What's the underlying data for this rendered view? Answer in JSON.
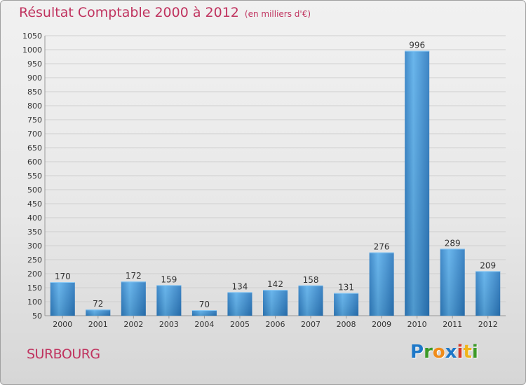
{
  "title": "Résultat Comptable 2000 à 2012",
  "unit": "(en milliers d'€)",
  "town": "SURBOURG",
  "logo": {
    "letters": [
      {
        "ch": "P",
        "color": "#1e78c8"
      },
      {
        "ch": "r",
        "color": "#3c9a28"
      },
      {
        "ch": "o",
        "color": "#f08c1a"
      },
      {
        "ch": "x",
        "color": "#1e78c8"
      },
      {
        "ch": "i",
        "color": "#d43a2a"
      },
      {
        "ch": "t",
        "color": "#f0b41a"
      },
      {
        "ch": "i",
        "color": "#3c9a28"
      }
    ]
  },
  "chart_data": {
    "type": "bar",
    "categories": [
      "2000",
      "2001",
      "2002",
      "2003",
      "2004",
      "2005",
      "2006",
      "2007",
      "2008",
      "2009",
      "2010",
      "2011",
      "2012"
    ],
    "values": [
      170,
      72,
      172,
      159,
      70,
      134,
      142,
      158,
      131,
      276,
      996,
      289,
      209
    ],
    "ylim": [
      50,
      1050
    ],
    "yticks": [
      50,
      100,
      150,
      200,
      250,
      300,
      350,
      400,
      450,
      500,
      550,
      600,
      650,
      700,
      750,
      800,
      850,
      900,
      950,
      1000,
      1050
    ],
    "grid": true,
    "bar_color": "#3d92d6",
    "grid_color": "#cfcfcf",
    "title_color": "#c0335f"
  }
}
